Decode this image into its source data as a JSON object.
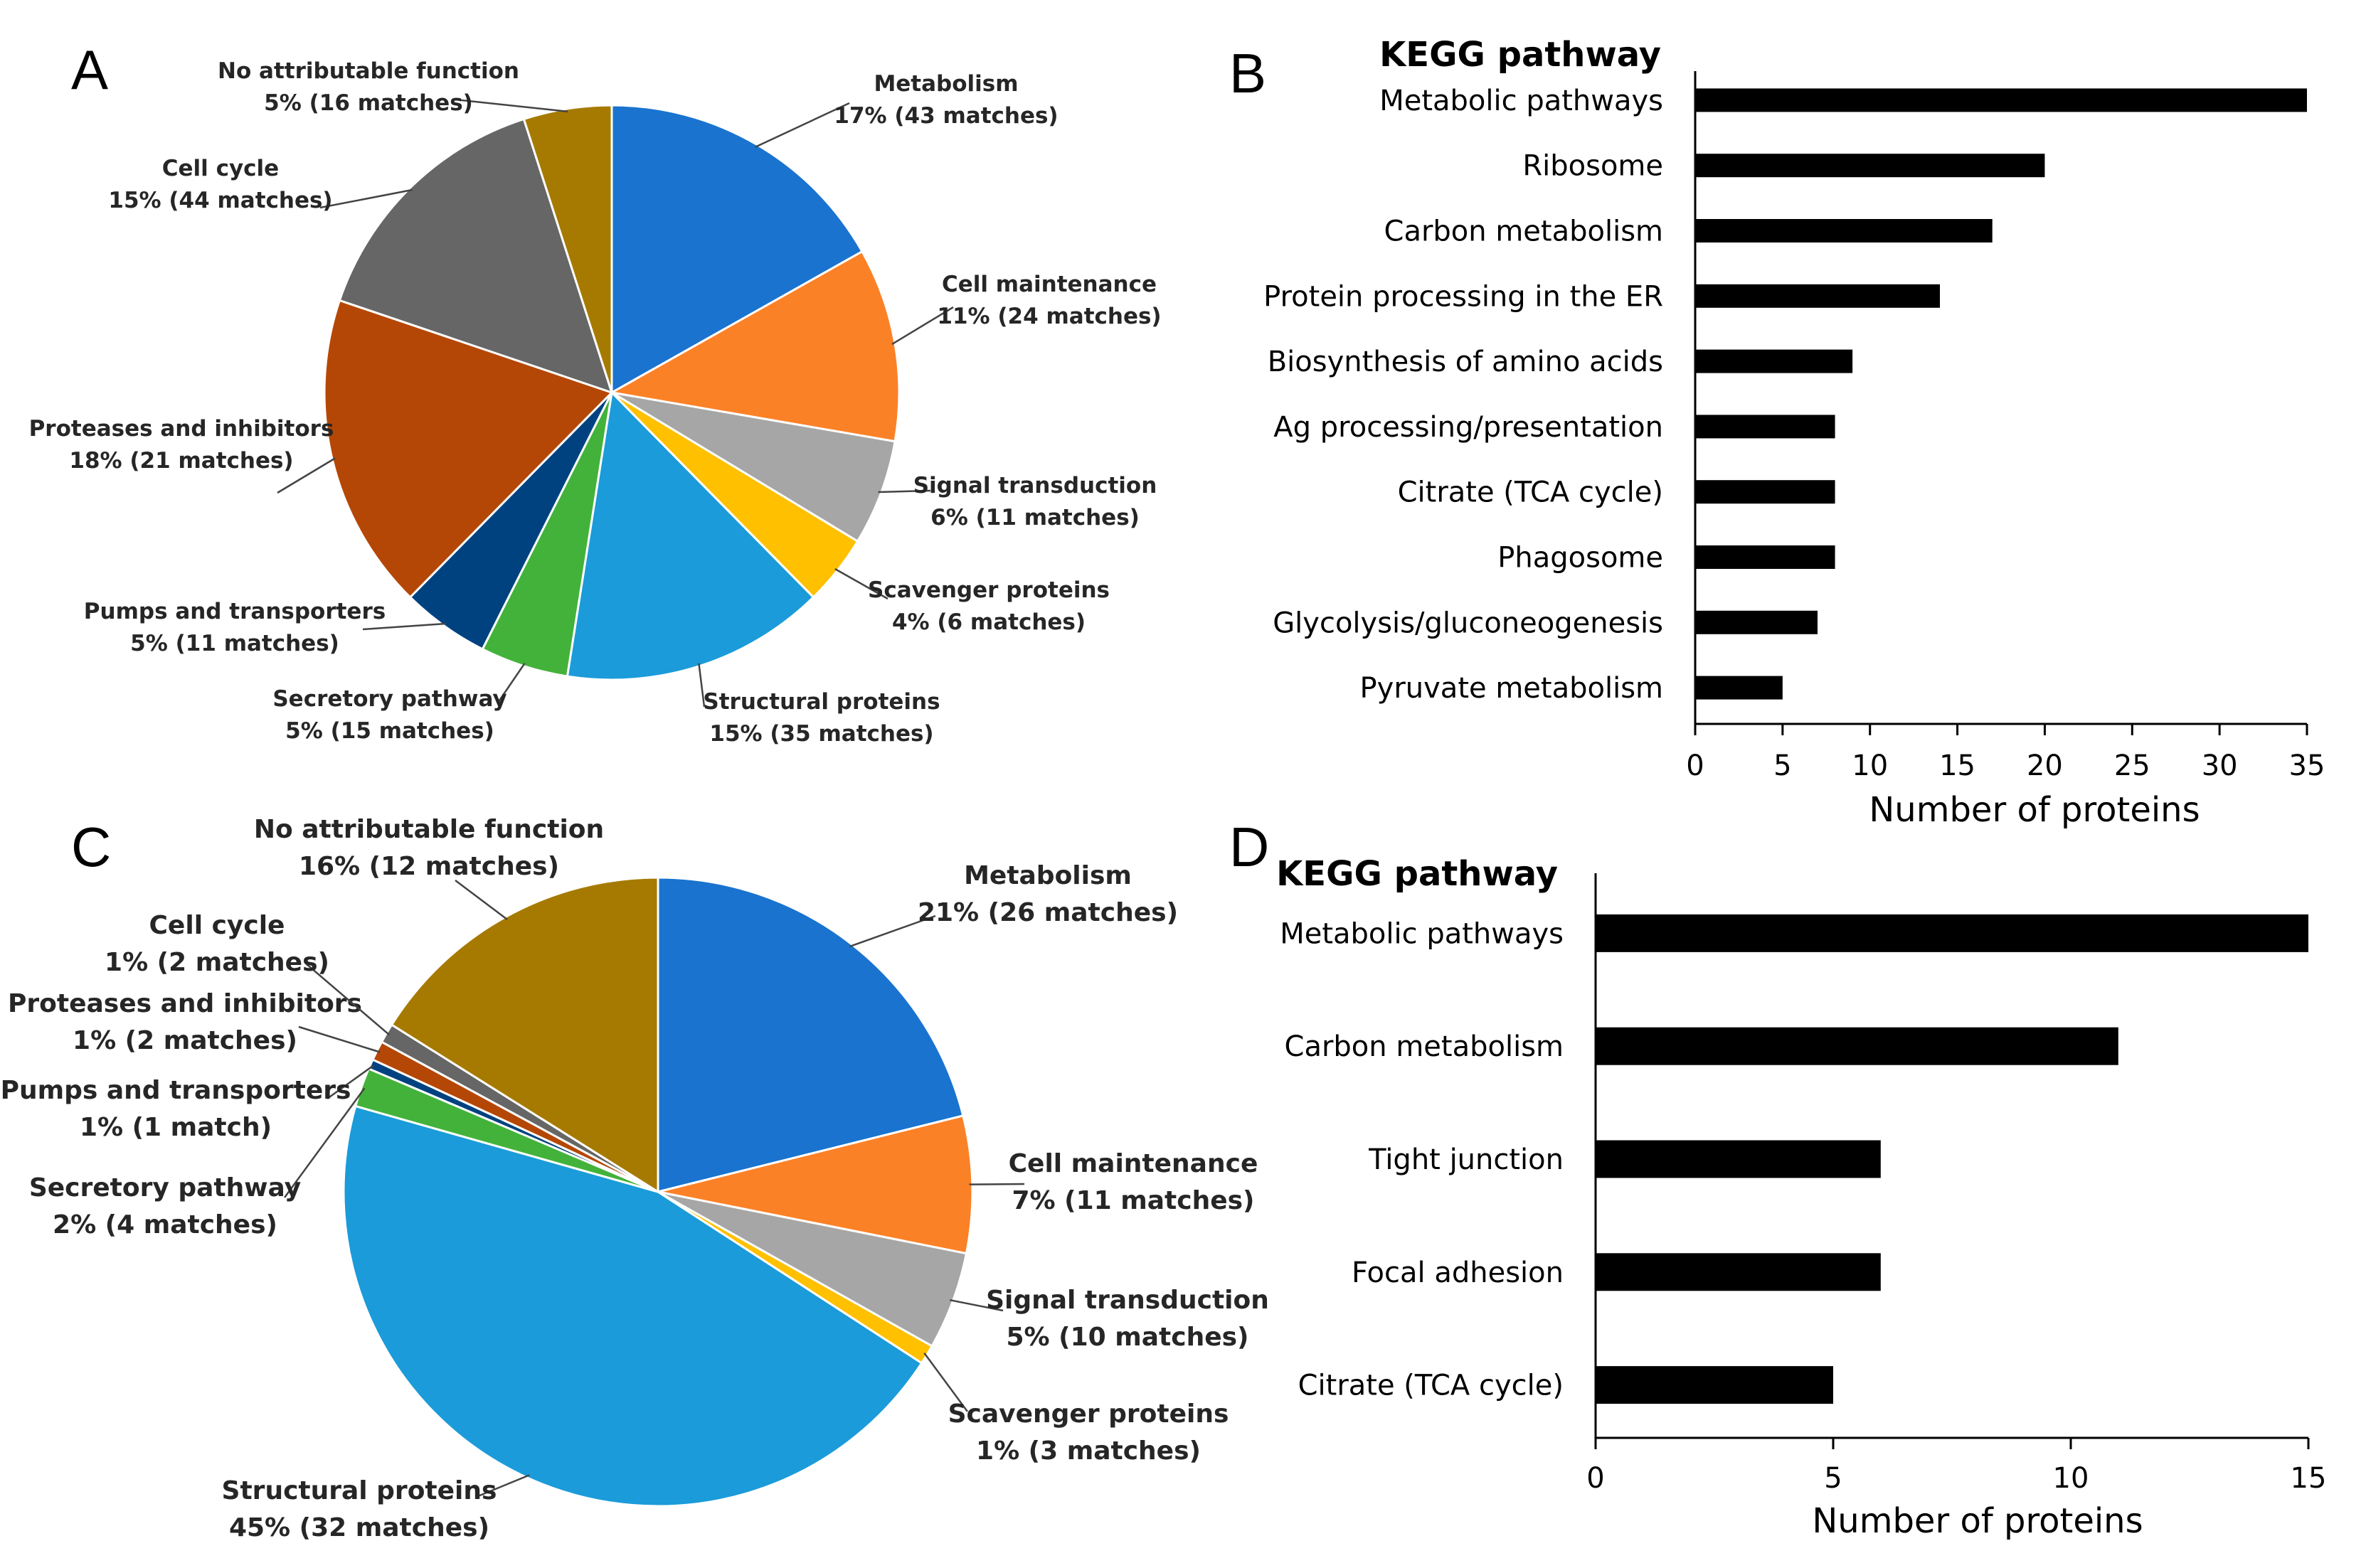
{
  "chart_data": [
    {
      "panel": "A",
      "type": "pie",
      "slices": [
        {
          "label": "Metabolism",
          "value_text": "17% (43 matches)",
          "value": 17,
          "color": "#1A73CF"
        },
        {
          "label": "Cell maintenance",
          "value_text": "11% (24 matches)",
          "value": 11,
          "color": "#FB8127"
        },
        {
          "label": "Signal transduction",
          "value_text": "6% (11 matches)",
          "value": 6,
          "color": "#A6A6A6"
        },
        {
          "label": "Scavenger proteins",
          "value_text": "4% (6 matches)",
          "value": 4,
          "color": "#FFC000"
        },
        {
          "label": "Structural proteins",
          "value_text": "15% (35 matches)",
          "value": 15,
          "color": "#1B9BD9"
        },
        {
          "label": "Secretory pathway",
          "value_text": "5% (15 matches)",
          "value": 5,
          "color": "#43B23B"
        },
        {
          "label": "Pumps and transporters",
          "value_text": "5% (11 matches)",
          "value": 5,
          "color": "#004280"
        },
        {
          "label": "Proteases and inhibitors",
          "value_text": "18% (21 matches)",
          "value": 18,
          "color": "#B54706"
        },
        {
          "label": "Cell cycle",
          "value_text": "15% (44 matches)",
          "value": 15,
          "color": "#666666"
        },
        {
          "label": "No attributable function",
          "value_text": "5% (16 matches)",
          "value": 5,
          "color": "#A67A00"
        }
      ]
    },
    {
      "panel": "B",
      "type": "bar",
      "orientation": "horizontal",
      "title": "KEGG pathway",
      "xlabel": "Number of proteins",
      "categories": [
        "Metabolic pathways",
        "Ribosome",
        "Carbon metabolism",
        "Protein processing in the ER",
        "Biosynthesis of amino acids",
        "Ag processing/presentation",
        "Citrate (TCA cycle)",
        "Phagosome",
        "Glycolysis/gluconeogenesis",
        "Pyruvate metabolism"
      ],
      "values": [
        35,
        20,
        17,
        14,
        9,
        8,
        8,
        8,
        7,
        5
      ],
      "xlim": [
        0,
        35
      ],
      "xticks": [
        0,
        5,
        10,
        15,
        20,
        25,
        30,
        35
      ],
      "bar_color": "#000000"
    },
    {
      "panel": "C",
      "type": "pie",
      "slices": [
        {
          "label": "Metabolism",
          "value_text": "21% (26 matches)",
          "value": 21,
          "color": "#1A73CF"
        },
        {
          "label": "Cell maintenance",
          "value_text": "7% (11 matches)",
          "value": 7,
          "color": "#FB8127"
        },
        {
          "label": "Signal transduction",
          "value_text": "5% (10 matches)",
          "value": 5,
          "color": "#A6A6A6"
        },
        {
          "label": "Scavenger proteins",
          "value_text": "1% (3 matches)",
          "value": 1,
          "color": "#FFC000"
        },
        {
          "label": "Structural proteins",
          "value_text": "45% (32 matches)",
          "value": 45,
          "color": "#1B9BD9"
        },
        {
          "label": "Secretory pathway",
          "value_text": "2% (4 matches)",
          "value": 2,
          "color": "#43B23B"
        },
        {
          "label": "Pumps and transporters",
          "value_text": "1% (1 match)",
          "value": 0.5,
          "color": "#004280"
        },
        {
          "label": "Proteases and inhibitors",
          "value_text": "1% (2 matches)",
          "value": 1,
          "color": "#B54706"
        },
        {
          "label": "Cell cycle",
          "value_text": "1% (2 matches)",
          "value": 1,
          "color": "#666666"
        },
        {
          "label": "No attributable function",
          "value_text": "16% (12 matches)",
          "value": 16,
          "color": "#A67A00"
        }
      ]
    },
    {
      "panel": "D",
      "type": "bar",
      "orientation": "horizontal",
      "title": "KEGG pathway",
      "xlabel": "Number of proteins",
      "categories": [
        "Metabolic pathways",
        "Carbon metabolism",
        "Tight junction",
        "Focal adhesion",
        "Citrate (TCA cycle)"
      ],
      "values": [
        15,
        11,
        6,
        6,
        5
      ],
      "xlim": [
        0,
        15
      ],
      "xticks": [
        0,
        5,
        10,
        15
      ],
      "bar_color": "#000000"
    }
  ]
}
